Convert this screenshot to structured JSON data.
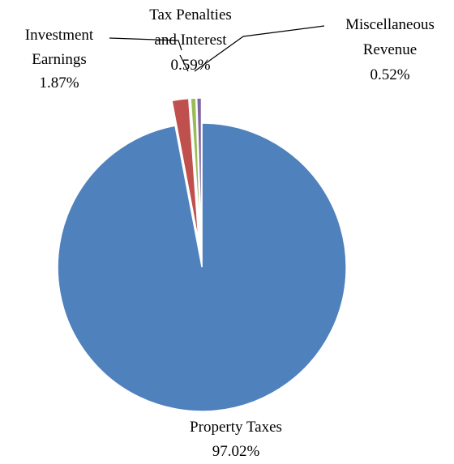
{
  "chart_data": {
    "type": "pie",
    "slices": [
      {
        "name": "Property Taxes",
        "value": 97.02,
        "percent_label": "97.02%",
        "color": "#4F81BD",
        "exploded": false
      },
      {
        "name": "Investment Earnings",
        "value": 1.87,
        "percent_label": "1.87%",
        "color": "#C0504D",
        "exploded": true
      },
      {
        "name": "Tax Penalties and Interest",
        "value": 0.59,
        "percent_label": "0.59%",
        "color": "#9BBB59",
        "exploded": true
      },
      {
        "name": "Miscellaneous Revenue",
        "value": 0.52,
        "percent_label": "0.52%",
        "color": "#8064A2",
        "exploded": true
      }
    ],
    "labels": {
      "property_taxes": {
        "line1": "Property Taxes",
        "pct": "97.02%"
      },
      "investment_earnings": {
        "line1": "Investment",
        "line2": "Earnings",
        "pct": "1.87%"
      },
      "tax_penalties": {
        "line1": "Tax Penalties",
        "line2": "and Interest",
        "pct": "0.59%"
      },
      "misc_revenue": {
        "line1": "Miscellaneous",
        "line2": "Revenue",
        "pct": "0.52%"
      }
    },
    "legend": "none",
    "start": "12 o'clock, clockwise"
  }
}
